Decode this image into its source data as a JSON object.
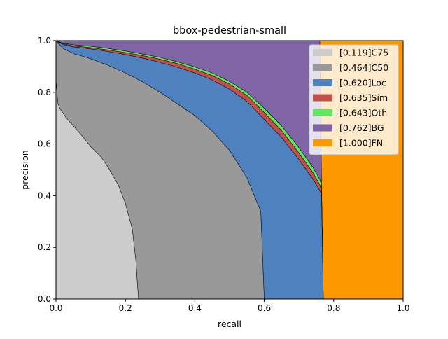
{
  "chart_data": {
    "type": "area",
    "title": "bbox-pedestrian-small",
    "xlabel": "recall",
    "ylabel": "precision",
    "xlim": [
      0,
      1
    ],
    "ylim": [
      0,
      1
    ],
    "x_ticks": [
      "0.0",
      "0.2",
      "0.4",
      "0.6",
      "0.8",
      "1.0"
    ],
    "y_ticks": [
      "0.0",
      "0.2",
      "0.4",
      "0.6",
      "0.8",
      "1.0"
    ],
    "grid": false,
    "legend_position": "top-right",
    "series": [
      {
        "name": "[1.000]FN",
        "color": "#ff9900",
        "points": [
          [
            0.0,
            1.0
          ],
          [
            1.0,
            1.0
          ],
          [
            1.0,
            0.0
          ],
          [
            0.0,
            0.0
          ]
        ]
      },
      {
        "name": "[0.762]BG",
        "color": "#7f65a5",
        "points": [
          [
            0.0,
            1.0
          ],
          [
            0.76,
            1.0
          ],
          [
            0.765,
            0.45
          ],
          [
            0.77,
            0.0
          ],
          [
            0.0,
            0.0
          ]
        ]
      },
      {
        "name": "[0.643]Oth",
        "color": "#5de860",
        "points": [
          [
            0.0,
            1.0
          ],
          [
            0.02,
            0.99
          ],
          [
            0.05,
            0.984
          ],
          [
            0.1,
            0.978
          ],
          [
            0.15,
            0.97
          ],
          [
            0.2,
            0.96
          ],
          [
            0.25,
            0.948
          ],
          [
            0.3,
            0.935
          ],
          [
            0.35,
            0.918
          ],
          [
            0.4,
            0.898
          ],
          [
            0.45,
            0.875
          ],
          [
            0.5,
            0.842
          ],
          [
            0.55,
            0.8
          ],
          [
            0.6,
            0.738
          ],
          [
            0.65,
            0.67
          ],
          [
            0.7,
            0.585
          ],
          [
            0.74,
            0.51
          ],
          [
            0.76,
            0.462
          ],
          [
            0.765,
            0.44
          ],
          [
            0.77,
            0.0
          ],
          [
            0.0,
            0.0
          ]
        ]
      },
      {
        "name": "[0.635]Sim",
        "color": "#c44e4a",
        "points": [
          [
            0.0,
            1.0
          ],
          [
            0.02,
            0.988
          ],
          [
            0.05,
            0.98
          ],
          [
            0.1,
            0.973
          ],
          [
            0.15,
            0.964
          ],
          [
            0.2,
            0.954
          ],
          [
            0.25,
            0.942
          ],
          [
            0.3,
            0.928
          ],
          [
            0.35,
            0.911
          ],
          [
            0.4,
            0.89
          ],
          [
            0.45,
            0.865
          ],
          [
            0.5,
            0.832
          ],
          [
            0.55,
            0.788
          ],
          [
            0.6,
            0.722
          ],
          [
            0.65,
            0.652
          ],
          [
            0.7,
            0.565
          ],
          [
            0.74,
            0.49
          ],
          [
            0.76,
            0.442
          ],
          [
            0.765,
            0.42
          ],
          [
            0.77,
            0.0
          ],
          [
            0.0,
            0.0
          ]
        ]
      },
      {
        "name": "[0.620]Loc",
        "color": "#4e81bd",
        "points": [
          [
            0.0,
            1.0
          ],
          [
            0.02,
            0.985
          ],
          [
            0.05,
            0.976
          ],
          [
            0.1,
            0.968
          ],
          [
            0.15,
            0.958
          ],
          [
            0.2,
            0.946
          ],
          [
            0.25,
            0.932
          ],
          [
            0.3,
            0.916
          ],
          [
            0.35,
            0.897
          ],
          [
            0.4,
            0.875
          ],
          [
            0.45,
            0.848
          ],
          [
            0.5,
            0.812
          ],
          [
            0.55,
            0.765
          ],
          [
            0.6,
            0.695
          ],
          [
            0.65,
            0.625
          ],
          [
            0.7,
            0.54
          ],
          [
            0.74,
            0.465
          ],
          [
            0.76,
            0.42
          ],
          [
            0.765,
            0.405
          ],
          [
            0.77,
            0.0
          ],
          [
            0.0,
            0.0
          ]
        ]
      },
      {
        "name": "[0.464]C50",
        "color": "#999999",
        "points": [
          [
            0.0,
            1.0
          ],
          [
            0.02,
            0.97
          ],
          [
            0.05,
            0.95
          ],
          [
            0.1,
            0.93
          ],
          [
            0.15,
            0.905
          ],
          [
            0.2,
            0.875
          ],
          [
            0.25,
            0.84
          ],
          [
            0.3,
            0.8
          ],
          [
            0.35,
            0.755
          ],
          [
            0.4,
            0.71
          ],
          [
            0.45,
            0.65
          ],
          [
            0.5,
            0.575
          ],
          [
            0.55,
            0.47
          ],
          [
            0.585,
            0.355
          ],
          [
            0.59,
            0.34
          ],
          [
            0.6,
            0.0
          ],
          [
            0.0,
            0.0
          ]
        ]
      },
      {
        "name": "[0.119]C75",
        "color": "#cccccc",
        "points": [
          [
            0.0,
            0.85
          ],
          [
            0.005,
            0.76
          ],
          [
            0.01,
            0.74
          ],
          [
            0.02,
            0.72
          ],
          [
            0.03,
            0.7
          ],
          [
            0.05,
            0.67
          ],
          [
            0.07,
            0.64
          ],
          [
            0.1,
            0.59
          ],
          [
            0.13,
            0.55
          ],
          [
            0.15,
            0.51
          ],
          [
            0.18,
            0.44
          ],
          [
            0.2,
            0.37
          ],
          [
            0.22,
            0.27
          ],
          [
            0.23,
            0.15
          ],
          [
            0.235,
            0.05
          ],
          [
            0.238,
            0.0
          ],
          [
            0.0,
            0.0
          ]
        ]
      }
    ],
    "legend": [
      {
        "label": "[0.119]C75",
        "color": "#cccccc"
      },
      {
        "label": "[0.464]C50",
        "color": "#999999"
      },
      {
        "label": "[0.620]Loc",
        "color": "#4e81bd"
      },
      {
        "label": "[0.635]Sim",
        "color": "#c44e4a"
      },
      {
        "label": "[0.643]Oth",
        "color": "#5de860"
      },
      {
        "label": "[0.762]BG",
        "color": "#7f65a5"
      },
      {
        "label": "[1.000]FN",
        "color": "#ff9900"
      }
    ]
  }
}
